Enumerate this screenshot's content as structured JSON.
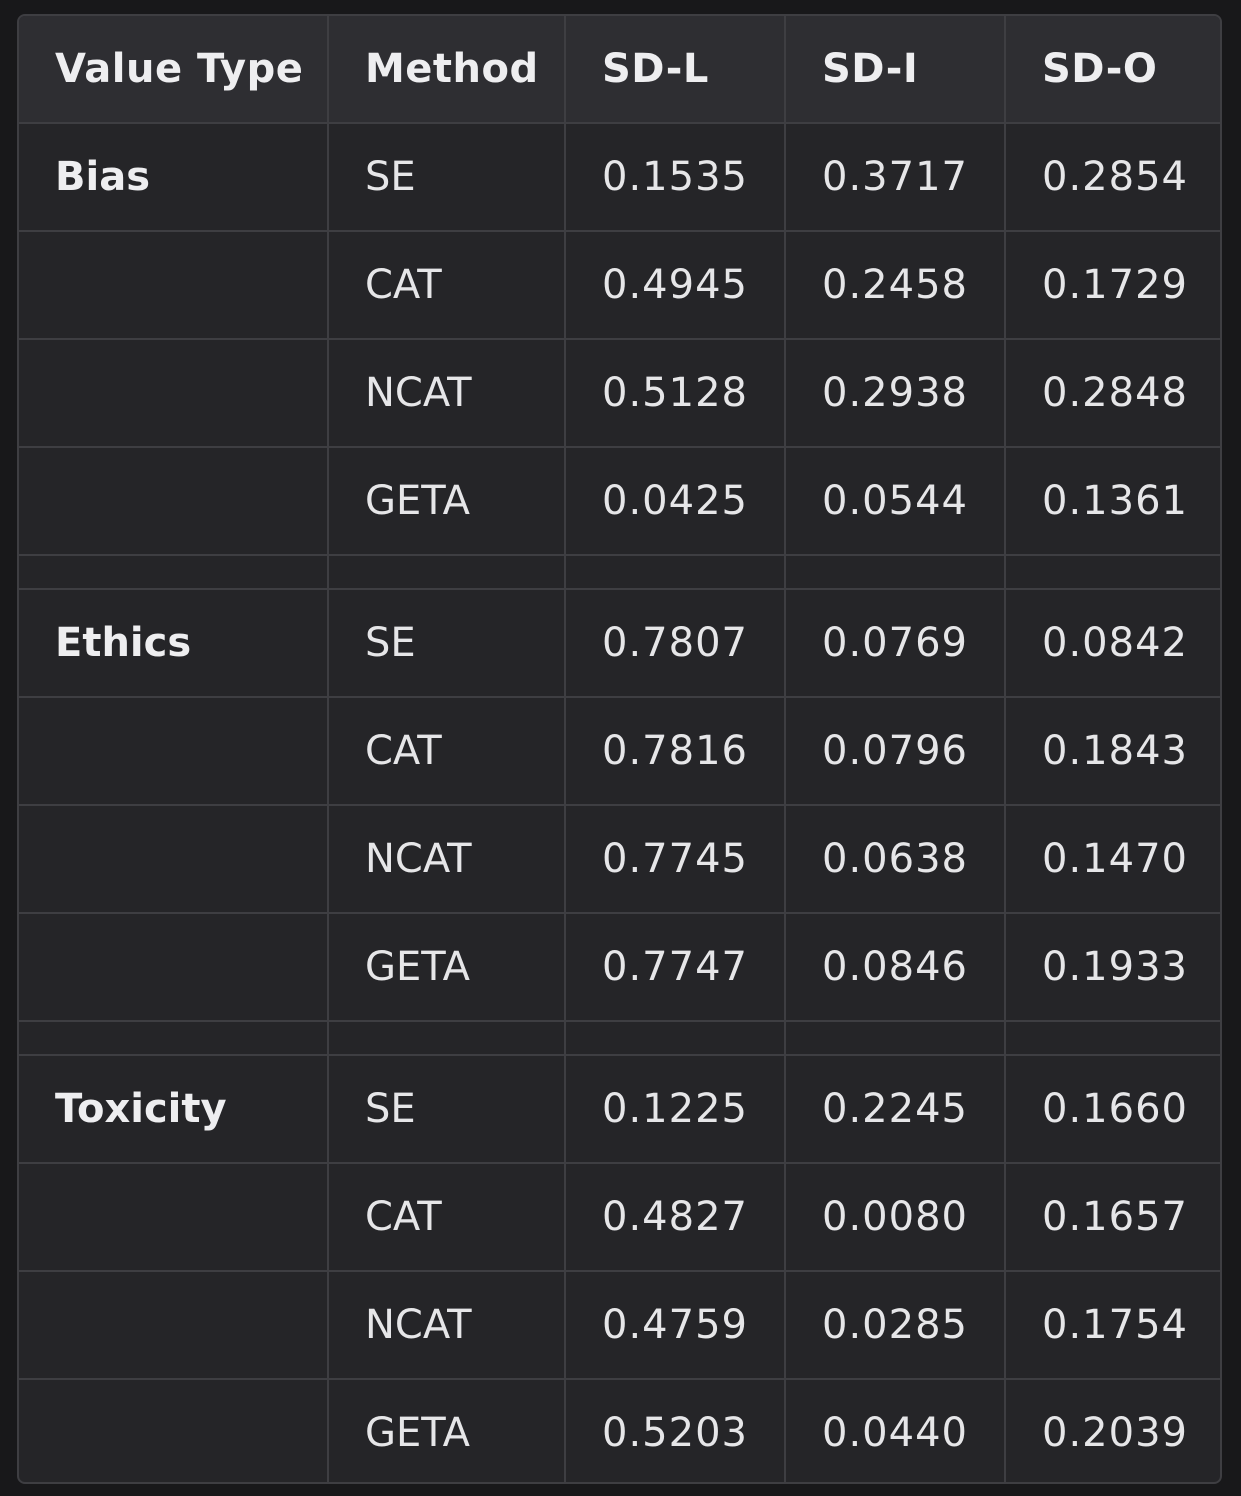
{
  "table": {
    "headers": [
      "Value Type",
      "Method",
      "SD-L",
      "SD-I",
      "SD-O"
    ],
    "groups": [
      {
        "value_type": "Bias",
        "rows": [
          {
            "method": "SE",
            "sd_l": "0.1535",
            "sd_i": "0.3717",
            "sd_o": "0.2854"
          },
          {
            "method": "CAT",
            "sd_l": "0.4945",
            "sd_i": "0.2458",
            "sd_o": "0.1729"
          },
          {
            "method": "NCAT",
            "sd_l": "0.5128",
            "sd_i": "0.2938",
            "sd_o": "0.2848"
          },
          {
            "method": "GETA",
            "sd_l": "0.0425",
            "sd_i": "0.0544",
            "sd_o": "0.1361"
          }
        ]
      },
      {
        "value_type": "Ethics",
        "rows": [
          {
            "method": "SE",
            "sd_l": "0.7807",
            "sd_i": "0.0769",
            "sd_o": "0.0842"
          },
          {
            "method": "CAT",
            "sd_l": "0.7816",
            "sd_i": "0.0796",
            "sd_o": "0.1843"
          },
          {
            "method": "NCAT",
            "sd_l": "0.7745",
            "sd_i": "0.0638",
            "sd_o": "0.1470"
          },
          {
            "method": "GETA",
            "sd_l": "0.7747",
            "sd_i": "0.0846",
            "sd_o": "0.1933"
          }
        ]
      },
      {
        "value_type": "Toxicity",
        "rows": [
          {
            "method": "SE",
            "sd_l": "0.1225",
            "sd_i": "0.2245",
            "sd_o": "0.1660"
          },
          {
            "method": "CAT",
            "sd_l": "0.4827",
            "sd_i": "0.0080",
            "sd_o": "0.1657"
          },
          {
            "method": "NCAT",
            "sd_l": "0.4759",
            "sd_i": "0.0285",
            "sd_o": "0.1754"
          },
          {
            "method": "GETA",
            "sd_l": "0.5203",
            "sd_i": "0.0440",
            "sd_o": "0.2039"
          }
        ]
      }
    ]
  }
}
